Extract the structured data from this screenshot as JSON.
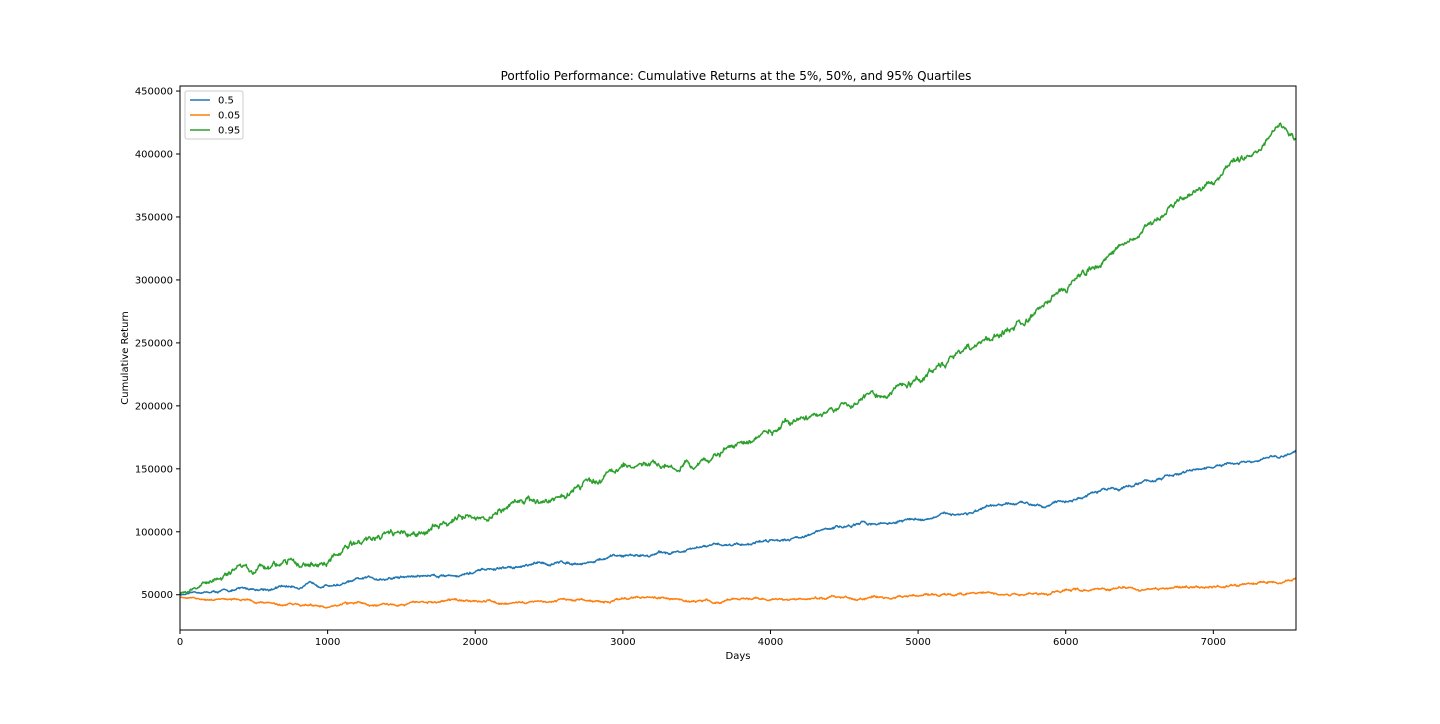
{
  "chart_data": {
    "type": "line",
    "title": "Portfolio Performance: Cumulative Returns at the 5%, 50%, and 95% Quartiles",
    "xlabel": "Days",
    "ylabel": "Cumulative Return",
    "xlim": [
      0,
      7560
    ],
    "ylim": [
      22000,
      454000
    ],
    "xticks": [
      0,
      1000,
      2000,
      3000,
      4000,
      5000,
      6000,
      7000
    ],
    "yticks": [
      50000,
      100000,
      150000,
      200000,
      250000,
      300000,
      350000,
      400000,
      450000
    ],
    "grid": false,
    "legend": "top-left",
    "series": [
      {
        "name": "0.5",
        "color": "#1f77b4",
        "noise": 1200,
        "x": [
          0,
          500,
          1000,
          1500,
          2000,
          2500,
          3000,
          3500,
          4000,
          4500,
          5000,
          5500,
          6000,
          6500,
          7000,
          7300,
          7560
        ],
        "values": [
          50000,
          54000,
          59000,
          64000,
          68000,
          74000,
          80000,
          86000,
          94000,
          104000,
          110000,
          118000,
          125000,
          139000,
          151000,
          154000,
          162000
        ]
      },
      {
        "name": "0.05",
        "color": "#ff7f0e",
        "noise": 1000,
        "x": [
          0,
          500,
          1000,
          1500,
          2000,
          2500,
          3000,
          3500,
          4000,
          4500,
          5000,
          5500,
          5800,
          6000,
          6500,
          7000,
          7300,
          7560
        ],
        "values": [
          48000,
          43000,
          42000,
          42500,
          43000,
          45000,
          46000,
          46500,
          47000,
          48500,
          50500,
          52000,
          50000,
          53000,
          55000,
          56000,
          60000,
          64000
        ]
      },
      {
        "name": "0.95",
        "color": "#2ca02c",
        "noise": 2800,
        "x": [
          0,
          500,
          1000,
          1500,
          2000,
          2500,
          3000,
          3500,
          4000,
          4500,
          5000,
          5500,
          6000,
          6500,
          7000,
          7300,
          7450,
          7560
        ],
        "values": [
          51000,
          72000,
          84000,
          101000,
          115000,
          127000,
          145000,
          160000,
          180000,
          202000,
          222000,
          258000,
          292000,
          338000,
          380000,
          402000,
          428000,
          412000
        ]
      }
    ]
  }
}
